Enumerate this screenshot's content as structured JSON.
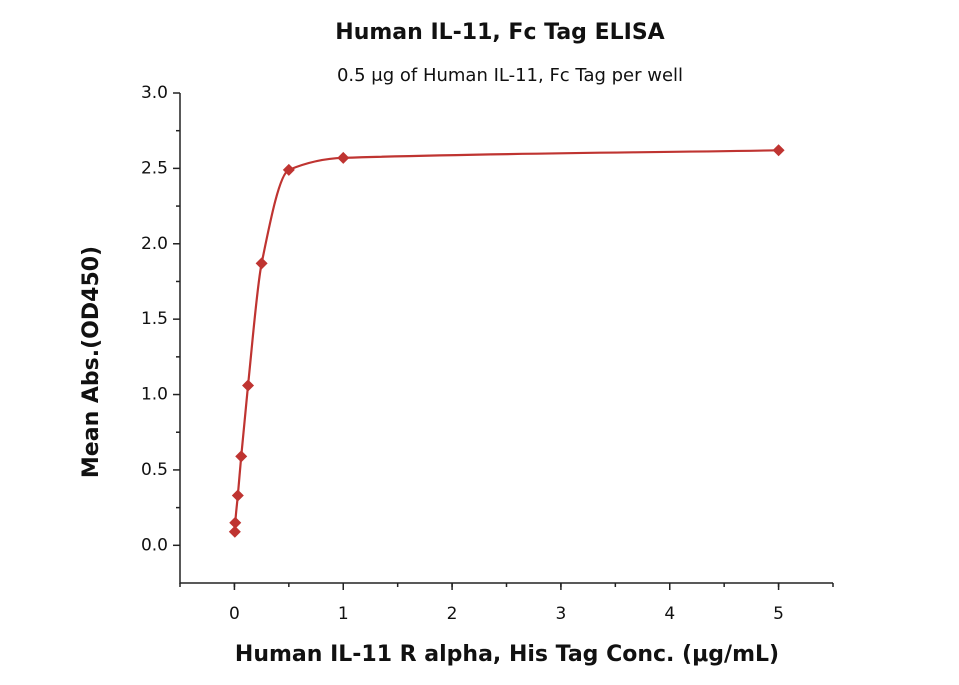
{
  "chart_data": {
    "type": "scatter",
    "title": "Human IL-11, Fc Tag ELISA",
    "subtitle": "0.5 μg of Human IL-11, Fc Tag per well",
    "x_label": "Human IL-11 R alpha, His Tag Conc. (μg/mL)",
    "y_label": "Mean Abs.(OD450)",
    "color": "#bf3431",
    "x": [
      0.0039,
      0.0078,
      0.03125,
      0.0625,
      0.125,
      0.25,
      0.5,
      1,
      5
    ],
    "values": [
      0.09,
      0.15,
      0.33,
      0.59,
      1.06,
      1.87,
      2.49,
      2.57,
      2.62
    ],
    "xlim": [
      -0.5,
      5.5
    ],
    "xticks": [
      0,
      1,
      2,
      3,
      4,
      5
    ],
    "ylim": [
      -0.25,
      3.0
    ],
    "yticks": [
      {
        "value": 0,
        "label": "0.0"
      },
      0.5,
      {
        "value": 1,
        "label": "1.0"
      },
      1.5,
      {
        "value": 2,
        "label": "2.0"
      },
      2.5,
      {
        "value": 3,
        "label": "3.0"
      }
    ],
    "grid": false
  }
}
